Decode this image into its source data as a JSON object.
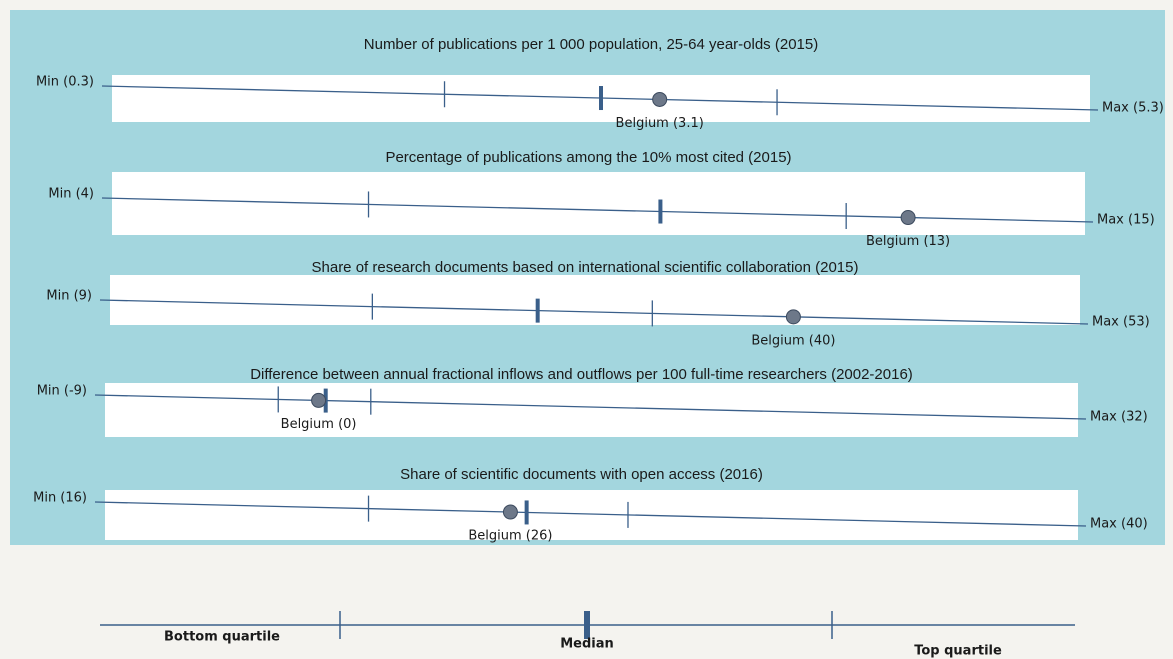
{
  "chart_data": [
    {
      "type": "range",
      "title": "Number of publications per 1 000 population, 25-64 year-olds (2015)",
      "xticks": [
        {
          "value": 0.3,
          "label": "Min (0.3)"
        },
        {
          "value": 5.3,
          "label": "Max (5.3)"
        }
      ],
      "quartiles": [
        2.0,
        2.8,
        3.7
      ],
      "values": [
        3.1
      ],
      "value_labels": [
        "Belgium (3.1)"
      ]
    },
    {
      "type": "range",
      "title": "Percentage of publications among the 10% most cited (2015)",
      "xticks": [
        {
          "value": 4,
          "label": "Min (4)"
        },
        {
          "value": 15,
          "label": "Max (15)"
        }
      ],
      "quartiles": [
        6.9,
        10.2,
        12.3
      ],
      "values": [
        13
      ],
      "value_labels": [
        "Belgium (13)"
      ]
    },
    {
      "type": "range",
      "title": "Share of research documents based on international scientific collaboration (2015)",
      "xticks": [
        {
          "value": 9,
          "label": "Min (9)"
        },
        {
          "value": 53,
          "label": "Max (53)"
        }
      ],
      "quartiles": [
        20.9,
        28.4,
        33.6
      ],
      "values": [
        40
      ],
      "value_labels": [
        "Belgium (40)"
      ]
    },
    {
      "type": "range",
      "title": "Difference between annual fractional inflows and outflows per 100 full-time researchers (2002-2016)",
      "xticks": [
        {
          "value": -9,
          "label": "Min (-9)"
        },
        {
          "value": 32,
          "label": "Max (32)"
        }
      ],
      "quartiles": [
        -1.7,
        0.3,
        2.2
      ],
      "values": [
        0
      ],
      "value_labels": [
        "Belgium (0)"
      ]
    },
    {
      "type": "range",
      "title": "Share of scientific documents with open access (2016)",
      "xticks": [
        {
          "value": 16,
          "label": "Min (16)"
        },
        {
          "value": 40,
          "label": "Max (40)"
        }
      ],
      "quartiles": [
        22.5,
        26.4,
        28.9
      ],
      "values": [
        26
      ],
      "value_labels": [
        "Belgium (26)"
      ]
    }
  ],
  "legend": {
    "labels": [
      "Bottom quartile",
      "Median",
      "Top quartile"
    ]
  }
}
